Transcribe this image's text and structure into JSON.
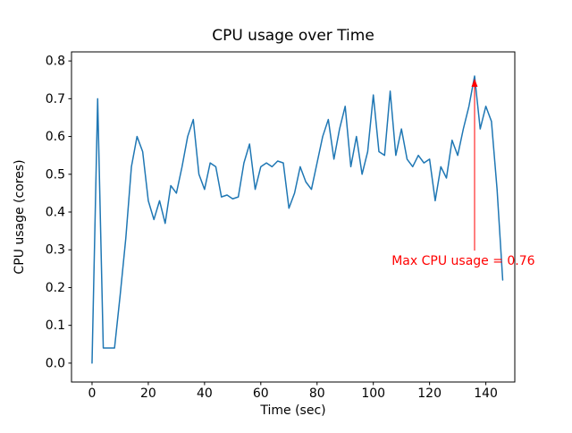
{
  "figure": {
    "background": "#ffffff"
  },
  "chart_data": {
    "type": "line",
    "title": "CPU usage over Time",
    "xlabel": "Time (sec)",
    "ylabel": "CPU usage (cores)",
    "xlim": [
      -7.3,
      150.3
    ],
    "ylim": [
      -0.05,
      0.824
    ],
    "xticks": [
      0,
      20,
      40,
      60,
      80,
      100,
      120,
      140
    ],
    "yticks": [
      0.0,
      0.1,
      0.2,
      0.3,
      0.4,
      0.5,
      0.6,
      0.7,
      0.8
    ],
    "grid": false,
    "legend": null,
    "x": [
      0,
      2,
      4,
      6,
      8,
      10,
      12,
      14,
      16,
      18,
      20,
      22,
      24,
      26,
      28,
      30,
      32,
      34,
      36,
      38,
      40,
      42,
      44,
      46,
      48,
      50,
      52,
      54,
      56,
      58,
      60,
      62,
      64,
      66,
      68,
      70,
      72,
      74,
      76,
      78,
      80,
      82,
      84,
      86,
      88,
      90,
      92,
      94,
      96,
      98,
      100,
      102,
      104,
      106,
      108,
      110,
      112,
      114,
      116,
      118,
      120,
      122,
      124,
      126,
      128,
      130,
      132,
      134,
      136,
      138,
      140,
      142,
      144,
      146
    ],
    "series": [
      {
        "name": "CPU usage",
        "color": "#1f77b4",
        "values": [
          0.0,
          0.7,
          0.04,
          0.04,
          0.04,
          0.18,
          0.33,
          0.52,
          0.6,
          0.56,
          0.43,
          0.38,
          0.43,
          0.37,
          0.47,
          0.45,
          0.52,
          0.6,
          0.645,
          0.5,
          0.46,
          0.53,
          0.52,
          0.44,
          0.445,
          0.435,
          0.44,
          0.53,
          0.58,
          0.46,
          0.52,
          0.53,
          0.52,
          0.535,
          0.53,
          0.41,
          0.45,
          0.52,
          0.48,
          0.46,
          0.53,
          0.6,
          0.645,
          0.54,
          0.62,
          0.68,
          0.52,
          0.6,
          0.5,
          0.56,
          0.71,
          0.56,
          0.55,
          0.72,
          0.55,
          0.62,
          0.54,
          0.52,
          0.55,
          0.53,
          0.54,
          0.43,
          0.52,
          0.49,
          0.59,
          0.55,
          0.62,
          0.68,
          0.76,
          0.62,
          0.68,
          0.64,
          0.46,
          0.22
        ]
      }
    ],
    "annotation": {
      "text": "Max CPU usage = 0.76",
      "color": "#ff0000",
      "point": {
        "x": 136,
        "y": 0.76
      },
      "text_pos": {
        "x": 132,
        "y": 0.26
      }
    }
  }
}
